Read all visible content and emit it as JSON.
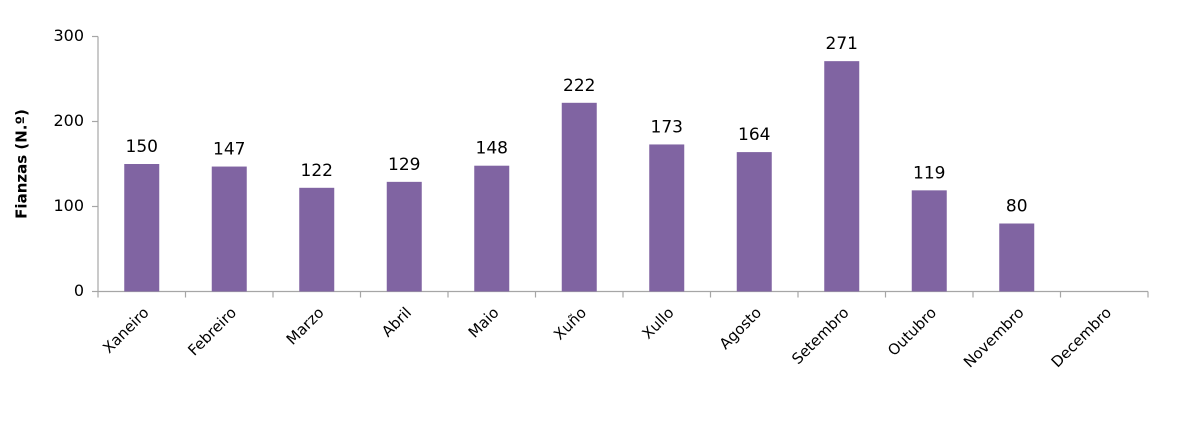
{
  "chart_data": {
    "type": "bar",
    "title": "",
    "xlabel": "",
    "ylabel": "Fianzas (N.º)",
    "ylim": [
      0,
      300
    ],
    "yticks": [
      0,
      100,
      200,
      300
    ],
    "grid": false,
    "legend": "none",
    "bar_color": "#8064a2",
    "axis_color": "#a6a6a6",
    "categories": [
      "Xaneiro",
      "Febreiro",
      "Marzo",
      "Abril",
      "Maio",
      "Xuño",
      "Xullo",
      "Agosto",
      "Setembro",
      "Outubro",
      "Novembro",
      "Decembro"
    ],
    "values": [
      150,
      147,
      122,
      129,
      148,
      222,
      173,
      164,
      271,
      119,
      80,
      null
    ],
    "data_labels": [
      "150",
      "147",
      "122",
      "129",
      "148",
      "222",
      "173",
      "164",
      "271",
      "119",
      "80",
      ""
    ]
  }
}
